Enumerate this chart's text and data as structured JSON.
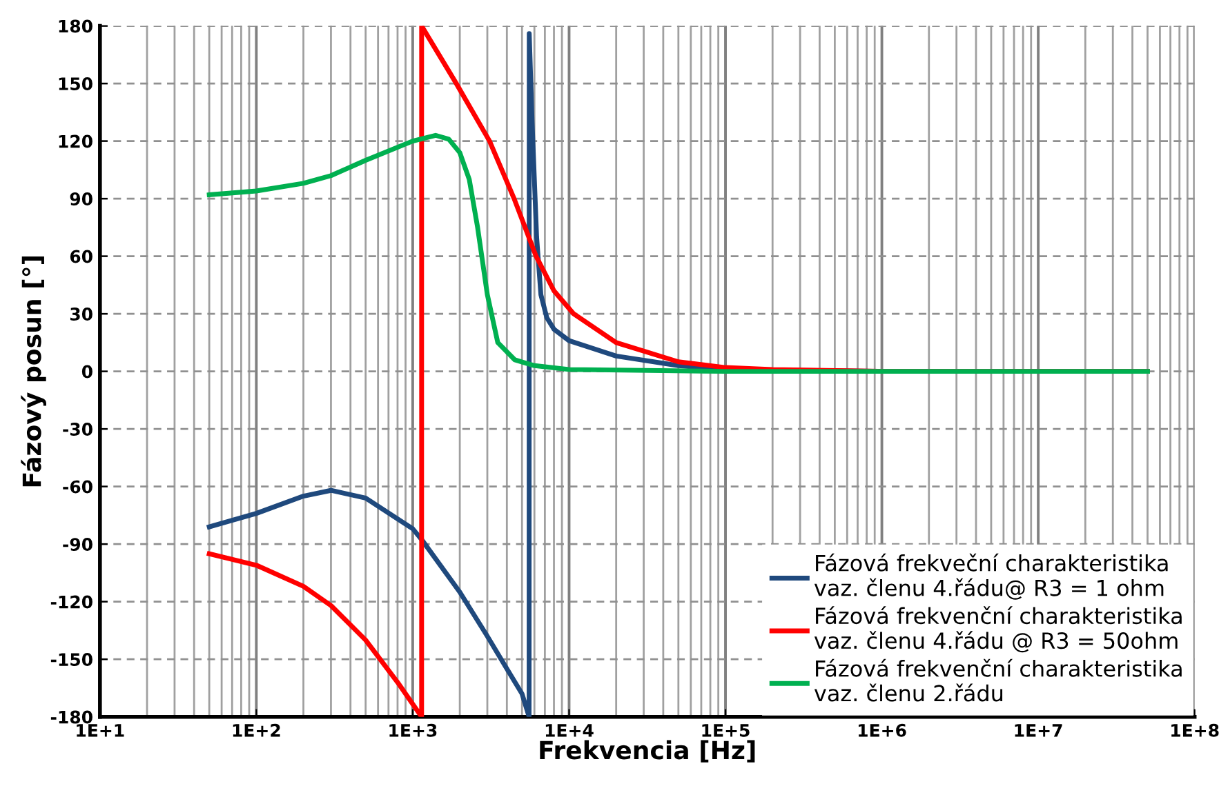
{
  "chart_data": {
    "type": "line",
    "xlabel": "Frekvencia [Hz]",
    "ylabel": "Fázový posun [°]",
    "log": "x",
    "grid": true,
    "legend": "bottom right",
    "marker": "none",
    "line_style": "solid",
    "xlim": [
      10,
      100000000
    ],
    "ylim": [
      -180,
      180
    ],
    "xticks": [
      {
        "value": 10,
        "label": "1E+1"
      },
      {
        "value": 100,
        "label": "1E+2"
      },
      {
        "value": 1000,
        "label": "1E+3"
      },
      {
        "value": 10000,
        "label": "1E+4"
      },
      {
        "value": 100000,
        "label": "1E+5"
      },
      {
        "value": 1000000,
        "label": "1E+6"
      },
      {
        "value": 10000000,
        "label": "1E+7"
      },
      {
        "value": 100000000,
        "label": "1E+8"
      }
    ],
    "yticks": [
      -180,
      -150,
      -120,
      -90,
      -60,
      -30,
      0,
      30,
      60,
      90,
      120,
      150,
      180
    ],
    "series": [
      {
        "name": "Fázová frekveční charakteristika\nvaz. členu 4.řádu@ R3 = 1 ohm",
        "color": "#1f497d",
        "x": [
          50,
          100,
          200,
          300,
          500,
          1000,
          1150,
          2000,
          3000,
          4000,
          5000,
          5550,
          5560,
          5800,
          6200,
          6600,
          7200,
          8000,
          10000,
          20000,
          50000,
          100000,
          1000000,
          50000000
        ],
        "values": [
          -81,
          -74,
          -65,
          -62,
          -66,
          -82,
          -88,
          -115,
          -138,
          -155,
          -168,
          -180,
          176,
          130,
          70,
          40,
          28,
          22,
          16,
          8,
          3,
          1,
          0,
          0
        ]
      },
      {
        "name": "Fázová frekvenční charakteristika\nvaz. členu 4.řádu @ R3 = 50ohm",
        "color": "#ff0000",
        "x": [
          50,
          100,
          200,
          300,
          500,
          800,
          1140,
          1140,
          1900,
          3100,
          4450,
          6150,
          8000,
          10700,
          20000,
          50000,
          100000,
          200000,
          1000000,
          50000000
        ],
        "values": [
          -95,
          -101,
          -112,
          -122,
          -140,
          -162,
          -180,
          180,
          150,
          120,
          90,
          60,
          42,
          30,
          15,
          5,
          2,
          1,
          0,
          0
        ]
      },
      {
        "name": "Fázová frekvenční charakteristika\nvaz. členu 2.řádu",
        "color": "#00b050",
        "x": [
          50,
          100,
          200,
          300,
          500,
          1000,
          1400,
          1700,
          2000,
          2300,
          2600,
          3000,
          3500,
          4500,
          6000,
          10000,
          100000,
          50000000
        ],
        "values": [
          92,
          94,
          98,
          102,
          110,
          120,
          123,
          121,
          114,
          100,
          75,
          40,
          15,
          6,
          3,
          1,
          0,
          0
        ]
      }
    ]
  }
}
